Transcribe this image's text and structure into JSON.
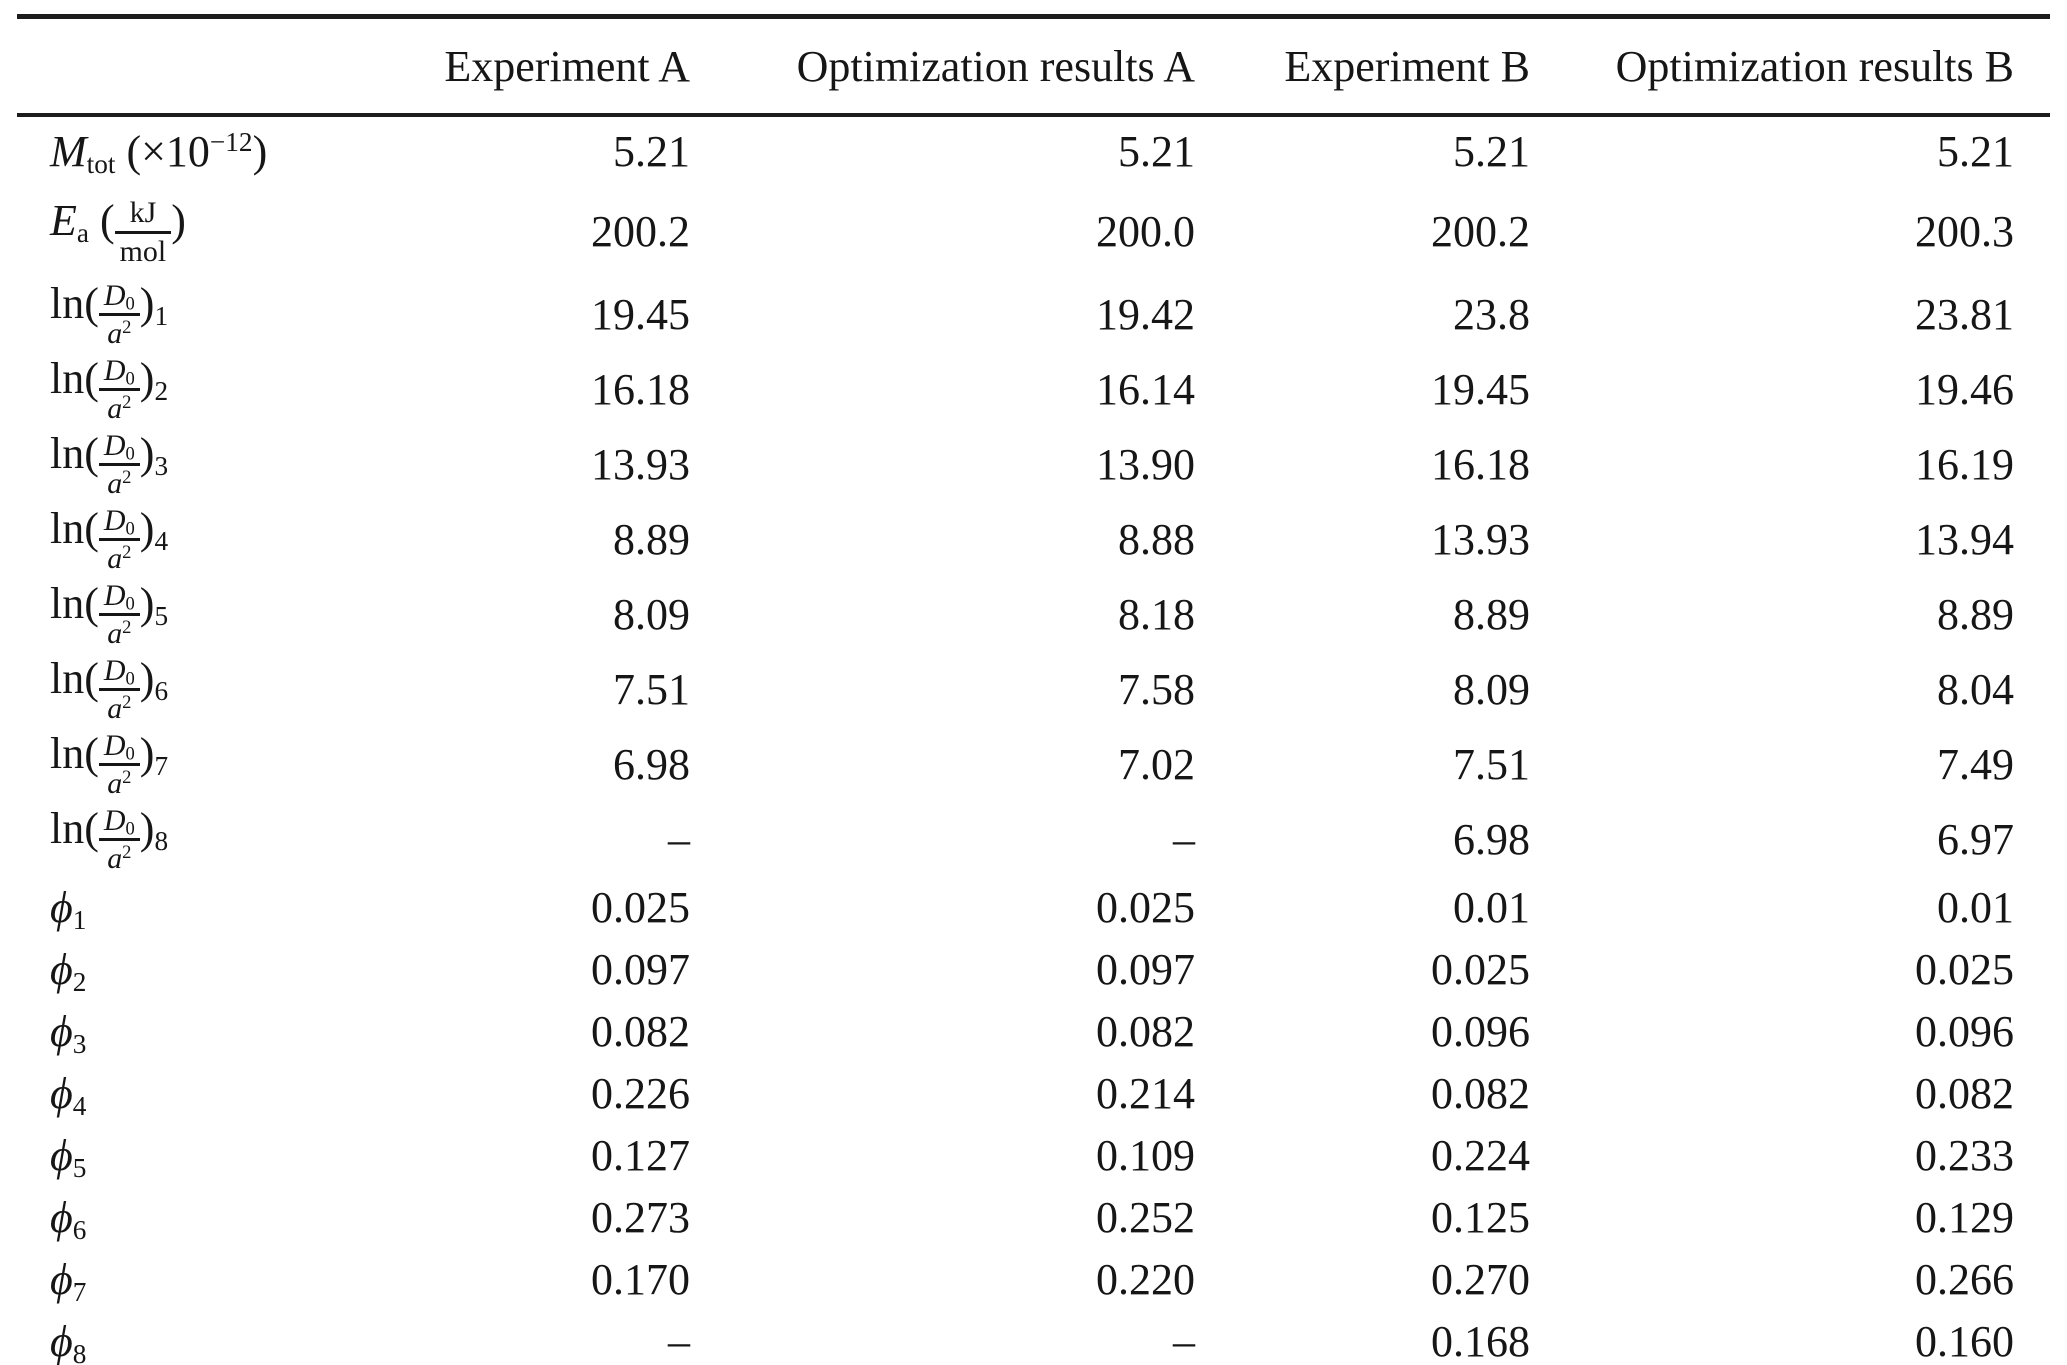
{
  "page": {
    "background": "#ffffff",
    "text_color": "#161616",
    "rule_color": "#1c1c1c"
  },
  "table": {
    "columns": [
      "",
      "Experiment A",
      "Optimization results A",
      "Experiment B",
      "Optimization results B"
    ],
    "rows": [
      {
        "kind": "mtot",
        "text": "Mtot (×10−12)",
        "label": [
          {
            "t": "i",
            "v": "M"
          },
          {
            "t": "sub",
            "v": "tot"
          },
          {
            "t": "n",
            "v": " (×10"
          },
          {
            "t": "sup",
            "v": "−12"
          },
          {
            "t": "n",
            "v": ")"
          }
        ],
        "values": [
          "5.21",
          "5.21",
          "5.21",
          "5.21"
        ]
      },
      {
        "kind": "ea",
        "text": "Ea (kJ/mol)",
        "label": [
          {
            "t": "i",
            "v": "E"
          },
          {
            "t": "sub",
            "v": "a"
          },
          {
            "t": "n",
            "v": " ("
          },
          {
            "t": "frac",
            "num": [
              {
                "t": "n",
                "v": "kJ"
              }
            ],
            "den": [
              {
                "t": "n",
                "v": "mol"
              }
            ]
          },
          {
            "t": "n",
            "v": ")"
          }
        ],
        "values": [
          "200.2",
          "200.0",
          "200.2",
          "200.3"
        ]
      },
      {
        "kind": "ln",
        "text": "ln(D0/a2)1",
        "label": [
          {
            "t": "n",
            "v": "ln("
          },
          {
            "t": "frac",
            "num": [
              {
                "t": "i",
                "v": "D"
              },
              {
                "t": "sub",
                "v": "0"
              }
            ],
            "den": [
              {
                "t": "i",
                "v": "a"
              },
              {
                "t": "sup",
                "v": "2"
              }
            ]
          },
          {
            "t": "n",
            "v": ")"
          },
          {
            "t": "sub",
            "v": "1"
          }
        ],
        "values": [
          "19.45",
          "19.42",
          "23.8",
          "23.81"
        ]
      },
      {
        "kind": "ln",
        "text": "ln(D0/a2)2",
        "label": [
          {
            "t": "n",
            "v": "ln("
          },
          {
            "t": "frac",
            "num": [
              {
                "t": "i",
                "v": "D"
              },
              {
                "t": "sub",
                "v": "0"
              }
            ],
            "den": [
              {
                "t": "i",
                "v": "a"
              },
              {
                "t": "sup",
                "v": "2"
              }
            ]
          },
          {
            "t": "n",
            "v": ")"
          },
          {
            "t": "sub",
            "v": "2"
          }
        ],
        "values": [
          "16.18",
          "16.14",
          "19.45",
          "19.46"
        ]
      },
      {
        "kind": "ln",
        "text": "ln(D0/a2)3",
        "label": [
          {
            "t": "n",
            "v": "ln("
          },
          {
            "t": "frac",
            "num": [
              {
                "t": "i",
                "v": "D"
              },
              {
                "t": "sub",
                "v": "0"
              }
            ],
            "den": [
              {
                "t": "i",
                "v": "a"
              },
              {
                "t": "sup",
                "v": "2"
              }
            ]
          },
          {
            "t": "n",
            "v": ")"
          },
          {
            "t": "sub",
            "v": "3"
          }
        ],
        "values": [
          "13.93",
          "13.90",
          "16.18",
          "16.19"
        ]
      },
      {
        "kind": "ln",
        "text": "ln(D0/a2)4",
        "label": [
          {
            "t": "n",
            "v": "ln("
          },
          {
            "t": "frac",
            "num": [
              {
                "t": "i",
                "v": "D"
              },
              {
                "t": "sub",
                "v": "0"
              }
            ],
            "den": [
              {
                "t": "i",
                "v": "a"
              },
              {
                "t": "sup",
                "v": "2"
              }
            ]
          },
          {
            "t": "n",
            "v": ")"
          },
          {
            "t": "sub",
            "v": "4"
          }
        ],
        "values": [
          "8.89",
          "8.88",
          "13.93",
          "13.94"
        ]
      },
      {
        "kind": "ln",
        "text": "ln(D0/a2)5",
        "label": [
          {
            "t": "n",
            "v": "ln("
          },
          {
            "t": "frac",
            "num": [
              {
                "t": "i",
                "v": "D"
              },
              {
                "t": "sub",
                "v": "0"
              }
            ],
            "den": [
              {
                "t": "i",
                "v": "a"
              },
              {
                "t": "sup",
                "v": "2"
              }
            ]
          },
          {
            "t": "n",
            "v": ")"
          },
          {
            "t": "sub",
            "v": "5"
          }
        ],
        "values": [
          "8.09",
          "8.18",
          "8.89",
          "8.89"
        ]
      },
      {
        "kind": "ln",
        "text": "ln(D0/a2)6",
        "label": [
          {
            "t": "n",
            "v": "ln("
          },
          {
            "t": "frac",
            "num": [
              {
                "t": "i",
                "v": "D"
              },
              {
                "t": "sub",
                "v": "0"
              }
            ],
            "den": [
              {
                "t": "i",
                "v": "a"
              },
              {
                "t": "sup",
                "v": "2"
              }
            ]
          },
          {
            "t": "n",
            "v": ")"
          },
          {
            "t": "sub",
            "v": "6"
          }
        ],
        "values": [
          "7.51",
          "7.58",
          "8.09",
          "8.04"
        ]
      },
      {
        "kind": "ln",
        "text": "ln(D0/a2)7",
        "label": [
          {
            "t": "n",
            "v": "ln("
          },
          {
            "t": "frac",
            "num": [
              {
                "t": "i",
                "v": "D"
              },
              {
                "t": "sub",
                "v": "0"
              }
            ],
            "den": [
              {
                "t": "i",
                "v": "a"
              },
              {
                "t": "sup",
                "v": "2"
              }
            ]
          },
          {
            "t": "n",
            "v": ")"
          },
          {
            "t": "sub",
            "v": "7"
          }
        ],
        "values": [
          "6.98",
          "7.02",
          "7.51",
          "7.49"
        ]
      },
      {
        "kind": "ln",
        "text": "ln(D0/a2)8",
        "label": [
          {
            "t": "n",
            "v": "ln("
          },
          {
            "t": "frac",
            "num": [
              {
                "t": "i",
                "v": "D"
              },
              {
                "t": "sub",
                "v": "0"
              }
            ],
            "den": [
              {
                "t": "i",
                "v": "a"
              },
              {
                "t": "sup",
                "v": "2"
              }
            ]
          },
          {
            "t": "n",
            "v": ")"
          },
          {
            "t": "sub",
            "v": "8"
          }
        ],
        "values": [
          "–",
          "–",
          "6.98",
          "6.97"
        ]
      },
      {
        "kind": "phi",
        "text": "ϕ1",
        "label": [
          {
            "t": "i",
            "v": "ϕ"
          },
          {
            "t": "sub",
            "v": "1"
          }
        ],
        "values": [
          "0.025",
          "0.025",
          "0.01",
          "0.01"
        ]
      },
      {
        "kind": "phi",
        "text": "ϕ2",
        "label": [
          {
            "t": "i",
            "v": "ϕ"
          },
          {
            "t": "sub",
            "v": "2"
          }
        ],
        "values": [
          "0.097",
          "0.097",
          "0.025",
          "0.025"
        ]
      },
      {
        "kind": "phi",
        "text": "ϕ3",
        "label": [
          {
            "t": "i",
            "v": "ϕ"
          },
          {
            "t": "sub",
            "v": "3"
          }
        ],
        "values": [
          "0.082",
          "0.082",
          "0.096",
          "0.096"
        ]
      },
      {
        "kind": "phi",
        "text": "ϕ4",
        "label": [
          {
            "t": "i",
            "v": "ϕ"
          },
          {
            "t": "sub",
            "v": "4"
          }
        ],
        "values": [
          "0.226",
          "0.214",
          "0.082",
          "0.082"
        ]
      },
      {
        "kind": "phi",
        "text": "ϕ5",
        "label": [
          {
            "t": "i",
            "v": "ϕ"
          },
          {
            "t": "sub",
            "v": "5"
          }
        ],
        "values": [
          "0.127",
          "0.109",
          "0.224",
          "0.233"
        ]
      },
      {
        "kind": "phi",
        "text": "ϕ6",
        "label": [
          {
            "t": "i",
            "v": "ϕ"
          },
          {
            "t": "sub",
            "v": "6"
          }
        ],
        "values": [
          "0.273",
          "0.252",
          "0.125",
          "0.129"
        ]
      },
      {
        "kind": "phi",
        "text": "ϕ7",
        "label": [
          {
            "t": "i",
            "v": "ϕ"
          },
          {
            "t": "sub",
            "v": "7"
          }
        ],
        "values": [
          "0.170",
          "0.220",
          "0.270",
          "0.266"
        ]
      },
      {
        "kind": "phi",
        "text": "ϕ8",
        "label": [
          {
            "t": "i",
            "v": "ϕ"
          },
          {
            "t": "sub",
            "v": "8"
          }
        ],
        "values": [
          "–",
          "–",
          "0.168",
          "0.160"
        ]
      }
    ]
  }
}
